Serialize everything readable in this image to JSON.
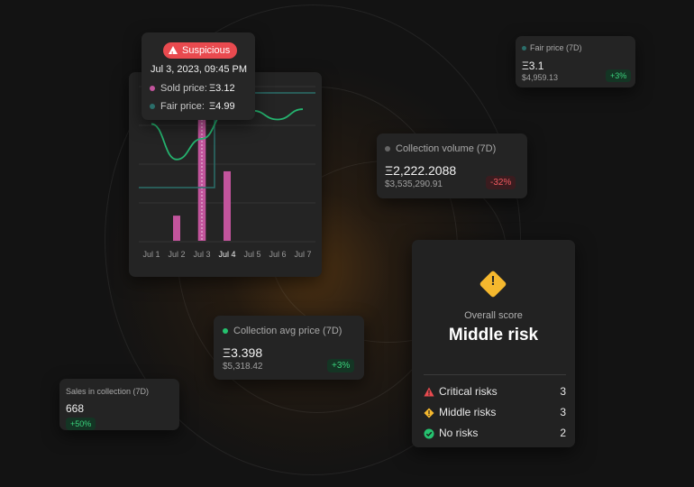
{
  "tooltip": {
    "badge": "Suspicious",
    "date": "Jul 3, 2023, 09:45 PM",
    "sold_label": "Sold price:",
    "sold_value": "Ξ3.12",
    "fair_label": "Fair price:",
    "fair_value": "Ξ4.99"
  },
  "chart_data": {
    "type": "bar",
    "categories": [
      "Jul 1",
      "Jul 2",
      "Jul 3",
      "Jul 4",
      "Jul 5",
      "Jul 6",
      "Jul 7"
    ],
    "highlighted_category": "Jul 4",
    "bar_values": [
      0,
      0.17,
      1.0,
      0.47,
      0,
      0,
      0
    ],
    "line_values": [
      0.79,
      0.55,
      0.69,
      0.88,
      0.88,
      0.82,
      0.89
    ],
    "fair_line_values": [
      0.36,
      0.36,
      0.36,
      1.0,
      1.0,
      1.0,
      1.0
    ],
    "colors": {
      "bar": "#c2549c",
      "line": "#25b36f",
      "fair_line": "#2b6e6a"
    }
  },
  "fair_price": {
    "label": "Fair price (7D)",
    "value": "Ξ3.1",
    "usd": "$4,959.13",
    "change": "+3%"
  },
  "volume": {
    "label": "Collection volume (7D)",
    "value": "Ξ2,222.2088",
    "usd": "$3,535,290.91",
    "change": "-32%"
  },
  "avg_price": {
    "label": "Collection avg price (7D)",
    "value": "Ξ3.398",
    "usd": "$5,318.42",
    "change": "+3%"
  },
  "sales": {
    "label": "Sales in collection (7D)",
    "value": "668",
    "change": "+50%"
  },
  "risk": {
    "overall_label": "Overall score",
    "overall_value": "Middle risk",
    "rows": [
      {
        "label": "Critical risks",
        "count": "3",
        "icon": "red-triangle-alert-icon"
      },
      {
        "label": "Middle risks",
        "count": "3",
        "icon": "yellow-diamond-alert-icon"
      },
      {
        "label": "No risks",
        "count": "2",
        "icon": "green-check-icon"
      }
    ]
  },
  "colors": {
    "green": "#25c26f",
    "red": "#e94a4f",
    "yellow": "#f5b82e",
    "teal": "#2b6e6a",
    "magenta": "#c2549c"
  }
}
